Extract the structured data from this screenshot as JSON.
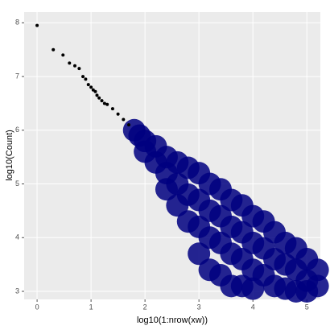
{
  "chart_data": {
    "type": "scatter",
    "xlabel": "log10(1:nrow(xw))",
    "ylabel": "log10(Count)",
    "xlim": [
      -0.24,
      5.25
    ],
    "ylim": [
      2.85,
      8.2
    ],
    "xticks": [
      0,
      1,
      2,
      3,
      4,
      5
    ],
    "yticks": [
      3,
      4,
      5,
      6,
      7,
      8
    ],
    "grid": true,
    "series": [
      {
        "color": "#000080",
        "x": [
          1.8,
          1.9,
          2.0,
          2.0,
          2.2,
          2.2,
          2.4,
          2.4,
          2.4,
          2.6,
          2.6,
          2.6,
          2.8,
          2.8,
          2.8,
          3.0,
          3.0,
          3.0,
          3.0,
          3.2,
          3.2,
          3.2,
          3.2,
          3.4,
          3.4,
          3.4,
          3.4,
          3.6,
          3.6,
          3.6,
          3.6,
          3.8,
          3.8,
          3.8,
          3.8,
          4.0,
          4.0,
          4.0,
          4.0,
          4.2,
          4.2,
          4.2,
          4.4,
          4.4,
          4.4,
          4.6,
          4.6,
          4.6,
          4.8,
          4.8,
          4.8,
          5.0,
          5.0,
          5.0,
          5.2,
          5.2
        ],
        "values": [
          6.0,
          5.9,
          5.8,
          5.6,
          5.7,
          5.4,
          5.5,
          5.2,
          4.9,
          5.4,
          5.0,
          4.6,
          5.3,
          4.8,
          4.3,
          5.2,
          4.7,
          4.2,
          3.7,
          5.0,
          4.5,
          4.0,
          3.4,
          4.9,
          4.4,
          3.9,
          3.3,
          4.7,
          4.2,
          3.7,
          3.1,
          4.6,
          4.1,
          3.6,
          3.1,
          4.4,
          3.9,
          3.4,
          3.05,
          4.3,
          3.8,
          3.3,
          4.1,
          3.6,
          3.1,
          3.9,
          3.5,
          3.05,
          3.8,
          3.4,
          3.0,
          3.6,
          3.2,
          3.0,
          3.4,
          3.1
        ]
      },
      {
        "color": "#000000",
        "x": [
          0,
          0.3,
          0.48,
          0.6,
          0.7,
          0.78,
          0.85,
          0.9,
          0.95,
          1.0,
          1.04,
          1.08,
          1.11,
          1.15,
          1.2,
          1.25,
          1.3,
          1.4,
          1.5,
          1.6,
          1.7
        ],
        "values": [
          7.95,
          7.5,
          7.4,
          7.25,
          7.2,
          7.15,
          7.0,
          6.95,
          6.85,
          6.8,
          6.75,
          6.72,
          6.65,
          6.6,
          6.55,
          6.5,
          6.48,
          6.4,
          6.3,
          6.2,
          6.1
        ]
      }
    ]
  }
}
